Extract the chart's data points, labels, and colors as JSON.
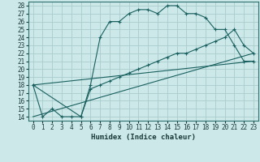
{
  "xlabel": "Humidex (Indice chaleur)",
  "bg_color": "#cce8e8",
  "grid_color": "#aacccc",
  "line_color": "#1a6060",
  "xlim": [
    -0.5,
    23.5
  ],
  "ylim": [
    13.5,
    28.5
  ],
  "xticks": [
    0,
    1,
    2,
    3,
    4,
    5,
    6,
    7,
    8,
    9,
    10,
    11,
    12,
    13,
    14,
    15,
    16,
    17,
    18,
    19,
    20,
    21,
    22,
    23
  ],
  "yticks": [
    14,
    15,
    16,
    17,
    18,
    19,
    20,
    21,
    22,
    23,
    24,
    25,
    26,
    27,
    28
  ],
  "line1_x": [
    0,
    1,
    2,
    3,
    4,
    5,
    6,
    7,
    8,
    9,
    10,
    11,
    12,
    13,
    14,
    15,
    16,
    17,
    18,
    19,
    20,
    21,
    22,
    23
  ],
  "line1_y": [
    18,
    14,
    15,
    14,
    14,
    14,
    18,
    24,
    26,
    26,
    27,
    27.5,
    27.5,
    27,
    28,
    28,
    27,
    27,
    26.5,
    25,
    25,
    23,
    21,
    21
  ],
  "line2_x": [
    0,
    5,
    6,
    7,
    8,
    9,
    10,
    11,
    12,
    13,
    14,
    15,
    16,
    17,
    18,
    19,
    20,
    21,
    22,
    23
  ],
  "line2_y": [
    18,
    14,
    17.5,
    18,
    18.5,
    19,
    19.5,
    20,
    20.5,
    21,
    21.5,
    22,
    22,
    22.5,
    23,
    23.5,
    24,
    25,
    23,
    22
  ],
  "line3_x": [
    0,
    23
  ],
  "line3_y": [
    14,
    22
  ],
  "line4_x": [
    0,
    23
  ],
  "line4_y": [
    18,
    21
  ]
}
